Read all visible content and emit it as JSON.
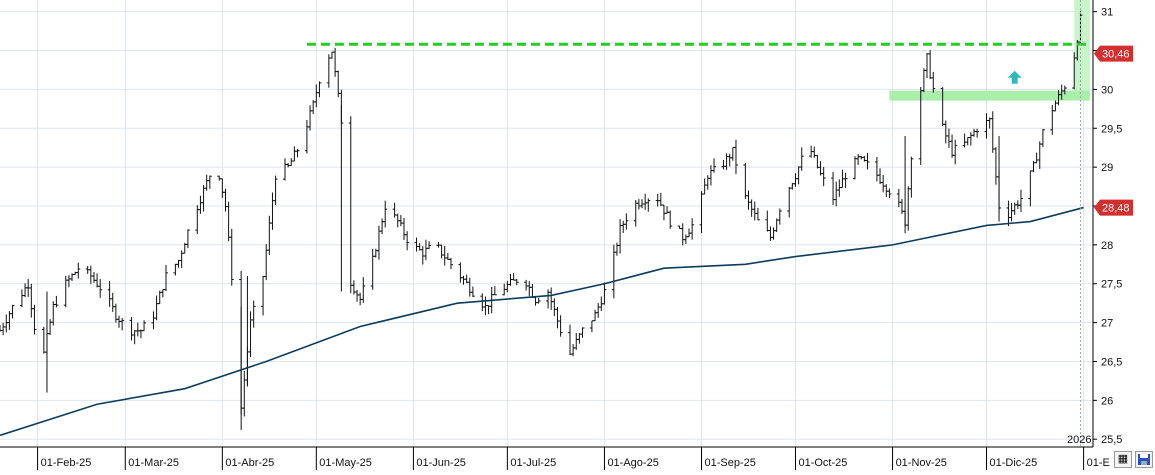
{
  "chart_data": {
    "type": "ohlc",
    "y_range": [
      25.4,
      31.15
    ],
    "y_ticks": [
      25.5,
      26,
      26.5,
      27,
      27.5,
      28,
      28.5,
      29,
      29.5,
      30,
      30.5,
      31
    ],
    "y_tick_labels": [
      "25,5",
      "26",
      "26,5",
      "27",
      "27,5",
      "28",
      "28,5",
      "29",
      "29,5",
      "30",
      "30,5",
      "31"
    ],
    "x_range": [
      "2025-01-20",
      "2026-01-04"
    ],
    "x_ticks": [
      {
        "date": "2025-02-01",
        "label": "01-Feb-25"
      },
      {
        "date": "2025-03-01",
        "label": "01-Mar-25"
      },
      {
        "date": "2025-04-01",
        "label": "01-Abr-25"
      },
      {
        "date": "2025-05-01",
        "label": "01-May-25"
      },
      {
        "date": "2025-06-01",
        "label": "01-Jun-25"
      },
      {
        "date": "2025-07-01",
        "label": "01-Jul-25"
      },
      {
        "date": "2025-08-01",
        "label": "01-Ago-25"
      },
      {
        "date": "2025-09-01",
        "label": "01-Sep-25"
      },
      {
        "date": "2025-10-01",
        "label": "01-Oct-25"
      },
      {
        "date": "2025-11-01",
        "label": "01-Nov-25"
      },
      {
        "date": "2025-12-01",
        "label": "01-Dic-25"
      },
      {
        "date": "2026-01-01",
        "label": "01-E"
      }
    ],
    "year_label": "2026",
    "price_path": [
      [
        "2025-01-20",
        26.9
      ],
      [
        "2025-01-24",
        27.2
      ],
      [
        "2025-01-29",
        27.5
      ],
      [
        "2025-02-02",
        26.4
      ],
      [
        "2025-02-06",
        27.2
      ],
      [
        "2025-02-10",
        27.5
      ],
      [
        "2025-02-14",
        27.7
      ],
      [
        "2025-02-18",
        27.6
      ],
      [
        "2025-02-22",
        27.4
      ],
      [
        "2025-02-26",
        27.1
      ],
      [
        "2025-03-02",
        26.9
      ],
      [
        "2025-03-06",
        26.9
      ],
      [
        "2025-03-10",
        27.1
      ],
      [
        "2025-03-14",
        27.6
      ],
      [
        "2025-03-18",
        27.8
      ],
      [
        "2025-03-22",
        28.3
      ],
      [
        "2025-03-26",
        28.7
      ],
      [
        "2025-03-30",
        29.1
      ],
      [
        "2025-04-02",
        28.5
      ],
      [
        "2025-04-04",
        27.6
      ],
      [
        "2025-04-07",
        25.9
      ],
      [
        "2025-04-10",
        27.0
      ],
      [
        "2025-04-14",
        27.6
      ],
      [
        "2025-04-18",
        28.9
      ],
      [
        "2025-04-22",
        29.0
      ],
      [
        "2025-04-26",
        29.3
      ],
      [
        "2025-04-30",
        29.8
      ],
      [
        "2025-05-03",
        30.3
      ],
      [
        "2025-05-06",
        30.5
      ],
      [
        "2025-05-09",
        29.6
      ],
      [
        "2025-05-11",
        27.6
      ],
      [
        "2025-05-15",
        27.3
      ],
      [
        "2025-05-19",
        27.8
      ],
      [
        "2025-05-23",
        28.5
      ],
      [
        "2025-05-27",
        28.3
      ],
      [
        "2025-05-31",
        28.0
      ],
      [
        "2025-06-04",
        27.9
      ],
      [
        "2025-06-08",
        28.0
      ],
      [
        "2025-06-12",
        27.8
      ],
      [
        "2025-06-16",
        27.6
      ],
      [
        "2025-06-20",
        27.4
      ],
      [
        "2025-06-24",
        27.2
      ],
      [
        "2025-06-28",
        27.4
      ],
      [
        "2025-07-02",
        27.5
      ],
      [
        "2025-07-06",
        27.6
      ],
      [
        "2025-07-10",
        27.3
      ],
      [
        "2025-07-14",
        27.4
      ],
      [
        "2025-07-18",
        26.9
      ],
      [
        "2025-07-21",
        26.6
      ],
      [
        "2025-07-25",
        26.9
      ],
      [
        "2025-07-29",
        27.1
      ],
      [
        "2025-08-02",
        27.5
      ],
      [
        "2025-08-06",
        28.2
      ],
      [
        "2025-08-10",
        28.5
      ],
      [
        "2025-08-14",
        28.6
      ],
      [
        "2025-08-18",
        28.6
      ],
      [
        "2025-08-22",
        28.3
      ],
      [
        "2025-08-26",
        28.1
      ],
      [
        "2025-08-30",
        28.3
      ],
      [
        "2025-09-03",
        28.9
      ],
      [
        "2025-09-07",
        29.0
      ],
      [
        "2025-09-11",
        29.2
      ],
      [
        "2025-09-15",
        28.6
      ],
      [
        "2025-09-19",
        28.3
      ],
      [
        "2025-09-23",
        28.1
      ],
      [
        "2025-09-27",
        28.6
      ],
      [
        "2025-10-01",
        28.9
      ],
      [
        "2025-10-05",
        29.3
      ],
      [
        "2025-10-09",
        28.9
      ],
      [
        "2025-10-13",
        28.6
      ],
      [
        "2025-10-17",
        28.9
      ],
      [
        "2025-10-21",
        29.1
      ],
      [
        "2025-10-25",
        29.0
      ],
      [
        "2025-10-29",
        28.8
      ],
      [
        "2025-11-02",
        28.6
      ],
      [
        "2025-11-05",
        28.3
      ],
      [
        "2025-11-08",
        29.6
      ],
      [
        "2025-11-12",
        30.4
      ],
      [
        "2025-11-16",
        29.6
      ],
      [
        "2025-11-20",
        29.2
      ],
      [
        "2025-11-24",
        29.3
      ],
      [
        "2025-11-28",
        29.5
      ],
      [
        "2025-12-02",
        29.6
      ],
      [
        "2025-12-05",
        28.5
      ],
      [
        "2025-12-08",
        28.4
      ],
      [
        "2025-12-12",
        28.6
      ],
      [
        "2025-12-16",
        29.0
      ],
      [
        "2025-12-20",
        29.6
      ],
      [
        "2025-12-24",
        29.9
      ],
      [
        "2025-12-28",
        30.2
      ],
      [
        "2025-12-31",
        30.9
      ]
    ],
    "moving_average": {
      "color": "#0c3d5c",
      "points": [
        [
          "2025-01-20",
          25.55
        ],
        [
          "2025-02-20",
          25.95
        ],
        [
          "2025-03-20",
          26.15
        ],
        [
          "2025-04-15",
          26.5
        ],
        [
          "2025-05-15",
          26.95
        ],
        [
          "2025-06-15",
          27.25
        ],
        [
          "2025-07-15",
          27.35
        ],
        [
          "2025-08-01",
          27.5
        ],
        [
          "2025-08-20",
          27.7
        ],
        [
          "2025-09-15",
          27.75
        ],
        [
          "2025-10-01",
          27.85
        ],
        [
          "2025-11-01",
          28.0
        ],
        [
          "2025-12-01",
          28.25
        ],
        [
          "2025-12-15",
          28.3
        ],
        [
          "2026-01-01",
          28.48
        ]
      ]
    },
    "resistance": {
      "value": 30.58,
      "from": "2025-04-28",
      "to": "2026-01-02",
      "color": "#1fd11f",
      "style": "dashed"
    },
    "breakout_zone": {
      "value": 29.92,
      "from": "2025-10-31",
      "to": "2026-01-03",
      "color": "#a9eea9"
    },
    "breakout_box": {
      "from": "2025-12-29",
      "to": "2026-01-03",
      "low": 29.92,
      "high": 31.15,
      "color": "#c8f5c8"
    },
    "arrow": {
      "date": "2025-12-10",
      "value": 30.15,
      "color": "#33b8b8",
      "direction": "up"
    },
    "price_labels": [
      {
        "value": 30.46,
        "text": "30,46",
        "color": "#d32f2f"
      },
      {
        "value": 28.48,
        "text": "28,48",
        "color": "#d32f2f"
      }
    ],
    "grid": true,
    "grid_color": "#dde4ee",
    "bar_color": "#111111"
  },
  "icons": {
    "left_button": "grid-icon",
    "right_button": "save-icon"
  }
}
